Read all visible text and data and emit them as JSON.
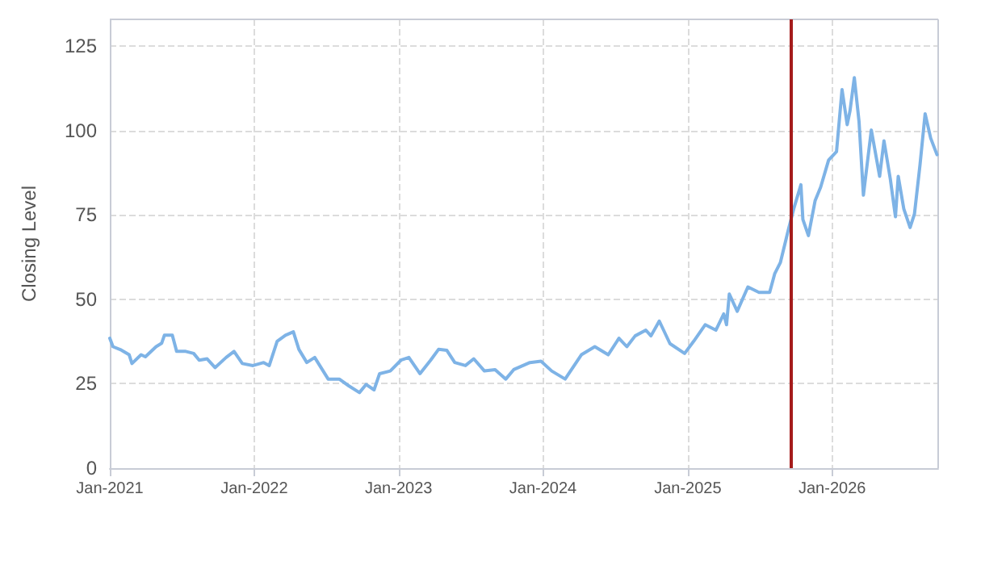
{
  "chart_data": {
    "type": "line",
    "ylabel": "Closing Level",
    "x": [
      "2021-01-01",
      "2021-01-09",
      "2021-01-30",
      "2021-02-19",
      "2021-02-26",
      "2021-03-21",
      "2021-04-01",
      "2021-04-28",
      "2021-05-12",
      "2021-05-19",
      "2021-06-08",
      "2021-06-19",
      "2021-07-12",
      "2021-08-01",
      "2021-08-15",
      "2021-09-04",
      "2021-09-24",
      "2021-10-22",
      "2021-11-11",
      "2021-12-02",
      "2021-12-29",
      "2022-01-25",
      "2022-02-08",
      "2022-02-28",
      "2022-03-21",
      "2022-04-10",
      "2022-04-24",
      "2022-05-14",
      "2022-06-03",
      "2022-07-07",
      "2022-08-04",
      "2022-08-28",
      "2022-09-24",
      "2022-10-11",
      "2022-10-31",
      "2022-11-14",
      "2022-12-11",
      "2023-01-07",
      "2023-01-27",
      "2023-02-24",
      "2023-03-23",
      "2023-04-12",
      "2023-05-03",
      "2023-05-23",
      "2023-06-19",
      "2023-07-10",
      "2023-08-06",
      "2023-09-02",
      "2023-09-29",
      "2023-10-19",
      "2023-11-29",
      "2023-12-27",
      "2024-01-23",
      "2024-02-26",
      "2024-04-07",
      "2024-05-11",
      "2024-06-14",
      "2024-07-11",
      "2024-07-31",
      "2024-08-21",
      "2024-09-17",
      "2024-09-30",
      "2024-10-21",
      "2024-11-17",
      "2024-12-24",
      "2025-01-16",
      "2025-02-14",
      "2025-03-13",
      "2025-04-02",
      "2025-04-09",
      "2025-04-16",
      "2025-05-06",
      "2025-06-02",
      "2025-06-30",
      "2025-07-27",
      "2025-08-09",
      "2025-08-23",
      "2025-09-12",
      "2025-09-26",
      "2025-10-14",
      "2025-10-19",
      "2025-11-02",
      "2025-11-19",
      "2025-12-03",
      "2025-12-23",
      "2026-01-12",
      "2026-01-26",
      "2026-02-08",
      "2026-02-15",
      "2026-02-26",
      "2026-03-10",
      "2026-03-21",
      "2026-04-10",
      "2026-05-01",
      "2026-05-12",
      "2026-05-28",
      "2026-06-10",
      "2026-06-17",
      "2026-07-01",
      "2026-07-17",
      "2026-07-28",
      "2026-08-11",
      "2026-08-24",
      "2026-09-07",
      "2026-09-23"
    ],
    "series": [
      {
        "color": "#7eb3e6",
        "values": [
          38.5,
          36,
          35,
          33.6,
          31,
          33.6,
          33,
          36,
          37,
          39.4,
          39.4,
          34.6,
          34.6,
          34,
          32,
          32.4,
          29.8,
          32.8,
          34.6,
          31,
          30.4,
          31.3,
          30.4,
          37.6,
          39.4,
          40.4,
          35.2,
          31.3,
          32.8,
          26.4,
          26.4,
          24.4,
          22.4,
          24.8,
          23.2,
          28,
          28.8,
          32,
          32.8,
          28,
          32,
          35.2,
          34.9,
          31.3,
          30.4,
          32.4,
          28.8,
          29.2,
          26.4,
          29.2,
          31.3,
          31.7,
          28.8,
          26.4,
          33.6,
          36,
          33.6,
          38.5,
          36,
          39.2,
          40.9,
          39.2,
          43.6,
          36.9,
          34,
          37.6,
          42.5,
          40.9,
          45.7,
          42.5,
          51.6,
          46.5,
          53.7,
          52.1,
          52.1,
          57.7,
          60.9,
          70.5,
          76.9,
          84,
          73.7,
          68.9,
          79.3,
          83.3,
          91.3,
          93.8,
          112.2,
          101.8,
          105.8,
          115.7,
          102.6,
          80.9,
          100.2,
          86.5,
          97,
          85.7,
          74.5,
          86.5,
          76.9,
          71.3,
          75.3,
          89.8,
          105,
          97.8,
          92.9
        ]
      }
    ],
    "xlim": [
      "2021-01-01",
      "2026-09-26"
    ],
    "xticks": [
      {
        "value": "2021-01-01",
        "label": "Jan-2021"
      },
      {
        "value": "2022-01-01",
        "label": "Jan-2022"
      },
      {
        "value": "2023-01-01",
        "label": "Jan-2023"
      },
      {
        "value": "2024-01-01",
        "label": "Jan-2024"
      },
      {
        "value": "2025-01-01",
        "label": "Jan-2025"
      },
      {
        "value": "2026-01-01",
        "label": "Jan-2026"
      }
    ],
    "ylim": [
      0,
      133
    ],
    "yticks": [
      0,
      25,
      50,
      75,
      100,
      125
    ],
    "ref_lines": [
      {
        "axis": "x",
        "value": "2025-09-17",
        "color": "#a51c1c",
        "line_style": "solid"
      }
    ],
    "grid": true,
    "marker": "none",
    "line_style": "solid"
  }
}
